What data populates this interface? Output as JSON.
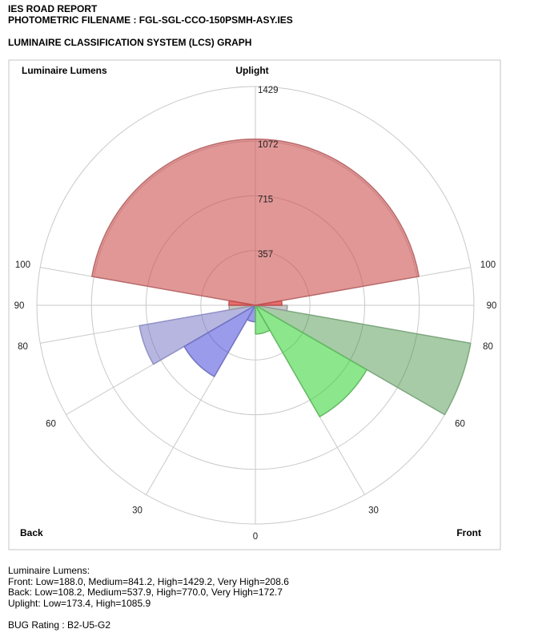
{
  "header": {
    "report_title": "IES ROAD REPORT",
    "filename_line": "PHOTOMETRIC FILENAME : FGL-SGL-CCO-150PSMH-ASY.IES",
    "graph_title": "LUMINAIRE CLASSIFICATION SYSTEM (LCS) GRAPH"
  },
  "chart_data": {
    "type": "polar-sector-lcs",
    "title": "Luminaire Classification System (LCS) Graph",
    "max_value": 1429.2,
    "grid": {
      "radial_ticks": [
        {
          "label": "357",
          "value": 357
        },
        {
          "label": "715",
          "value": 715
        },
        {
          "label": "1072",
          "value": 1072
        },
        {
          "label": "1429",
          "value": 1429
        }
      ],
      "angle_labels": [
        {
          "label": "100",
          "angle": -100
        },
        {
          "label": "90",
          "angle": -90
        },
        {
          "label": "80",
          "angle": -80
        },
        {
          "label": "60",
          "angle": -60
        },
        {
          "label": "30",
          "angle": -30
        },
        {
          "label": "0",
          "angle": 0
        },
        {
          "label": "30",
          "angle": 30
        },
        {
          "label": "60",
          "angle": 60
        },
        {
          "label": "80",
          "angle": 80
        },
        {
          "label": "90",
          "angle": 90
        },
        {
          "label": "100",
          "angle": 100
        }
      ],
      "spoke_angles": [
        -100,
        -90,
        -80,
        -60,
        -30,
        0,
        30,
        60,
        80,
        90,
        100,
        180
      ],
      "grid_color": "#c9c9c9",
      "box_color": "#c6c6c6"
    },
    "corner_labels": {
      "top_left": "Luminaire Lumens",
      "top_center": "Uplight",
      "bottom_left": "Back",
      "bottom_right": "Front"
    },
    "zones": [
      {
        "id": "uplight-high",
        "name": "Uplight High",
        "value": 1085.9,
        "start": -100,
        "end": 100,
        "via_top": true,
        "fill": "rgba(205,75,75,0.58)",
        "stroke": "#b96a6a"
      },
      {
        "id": "back-high",
        "name": "Back High",
        "value": 770.0,
        "start": -80,
        "end": -60,
        "via_top": false,
        "fill": "rgba(110,110,195,0.50)",
        "stroke": "#9191c6"
      },
      {
        "id": "back-medium",
        "name": "Back Medium",
        "value": 537.9,
        "start": -60,
        "end": -30,
        "via_top": false,
        "fill": "rgba(55,55,215,0.50)",
        "stroke": "#7373c2"
      },
      {
        "id": "back-low",
        "name": "Back Low",
        "value": 108.2,
        "start": -30,
        "end": 0,
        "via_top": false,
        "fill": "rgba(55,55,215,0.50)",
        "stroke": "#7373c2"
      },
      {
        "id": "front-high",
        "name": "Front High",
        "value": 1429.2,
        "start": 60,
        "end": 80,
        "via_top": false,
        "fill": "rgba(60,140,60,0.45)",
        "stroke": "#7ea87e"
      },
      {
        "id": "front-medium",
        "name": "Front Medium",
        "value": 841.2,
        "start": 30,
        "end": 60,
        "via_top": false,
        "fill": "rgba(45,210,45,0.55)",
        "stroke": "#62b862"
      },
      {
        "id": "front-low",
        "name": "Front Low",
        "value": 188.0,
        "start": 0,
        "end": 30,
        "via_top": false,
        "fill": "rgba(45,210,45,0.55)",
        "stroke": "#62b862"
      },
      {
        "id": "back-very-high",
        "name": "Back Very High",
        "value": 172.7,
        "start": -90,
        "end": -80,
        "via_top": false,
        "fill": "rgba(128,128,128,0.45)",
        "stroke": "#9a9a9a"
      },
      {
        "id": "front-very-high",
        "name": "Front Very High",
        "value": 208.6,
        "start": 80,
        "end": 90,
        "via_top": false,
        "fill": "rgba(128,128,128,0.45)",
        "stroke": "#9a9a9a"
      },
      {
        "id": "uplight-low-back",
        "name": "Uplight Low (back)",
        "value": 173.4,
        "start": -100,
        "end": -90,
        "via_top": false,
        "fill": "rgba(225,45,45,0.70)",
        "stroke": "#c05050"
      },
      {
        "id": "uplight-low-front",
        "name": "Uplight Low (front)",
        "value": 173.4,
        "start": 90,
        "end": 100,
        "via_top": false,
        "fill": "rgba(225,45,45,0.70)",
        "stroke": "#c05050"
      }
    ]
  },
  "footer": {
    "summary_title": "Luminaire Lumens:",
    "front_line": "Front: Low=188.0, Medium=841.2, High=1429.2, Very High=208.6",
    "back_line": "Back: Low=108.2, Medium=537.9, High=770.0, Very High=172.7",
    "uplight_line": "Uplight: Low=173.4, High=1085.9",
    "bug_rating": "BUG Rating : B2-U5-G2"
  }
}
